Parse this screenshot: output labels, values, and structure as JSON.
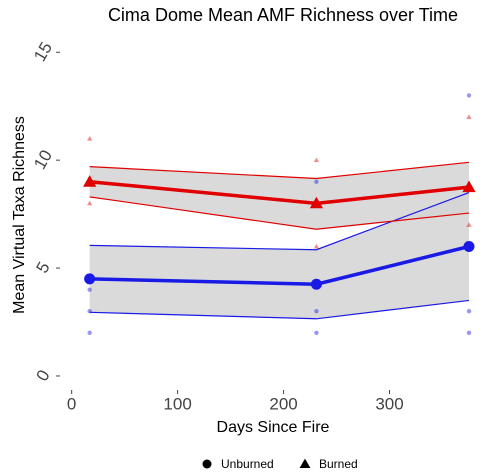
{
  "chart_data": {
    "type": "line",
    "title": "Cima Dome Mean AMF Richness over Time",
    "xlabel": "Days Since Fire",
    "ylabel": "Mean Virtual Taxa Richness",
    "x": [
      17,
      231,
      375
    ],
    "xlim": [
      -11,
      392
    ],
    "xticks": [
      0,
      100,
      200,
      300
    ],
    "ylim": [
      -0.65,
      15.8
    ],
    "yticks": [
      0,
      5,
      10,
      15
    ],
    "grid": false,
    "legend": "bottom",
    "ribbon_color": "#d3d3d3",
    "series": [
      {
        "name": "Unburned",
        "color": "#1a1ae6",
        "shape": "circle",
        "values": [
          4.5,
          4.25,
          6.0
        ],
        "lower": [
          2.95,
          2.65,
          3.5
        ],
        "upper": [
          6.05,
          5.85,
          8.5
        ],
        "raw_x": [
          17,
          17,
          17,
          231,
          231,
          231,
          375,
          375,
          375
        ],
        "raw_y": [
          4,
          3,
          2,
          9,
          3,
          2,
          13,
          3,
          2
        ]
      },
      {
        "name": "Burned",
        "color": "#e00000",
        "shape": "triangle",
        "values": [
          9.0,
          8.0,
          8.75
        ],
        "lower": [
          8.3,
          6.8,
          7.55
        ],
        "upper": [
          9.7,
          9.15,
          9.9
        ],
        "raw_x": [
          17,
          17,
          231,
          231,
          375,
          375
        ],
        "raw_y": [
          11,
          8,
          10,
          6,
          12,
          7
        ]
      }
    ]
  }
}
